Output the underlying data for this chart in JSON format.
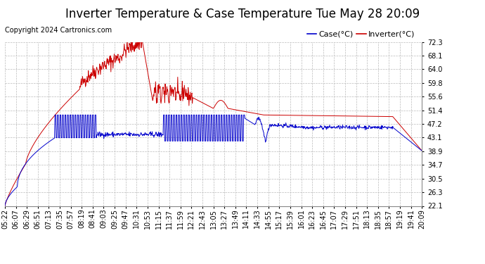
{
  "title": "Inverter Temperature & Case Temperature Tue May 28 20:09",
  "copyright": "Copyright 2024 Cartronics.com",
  "legend_case": "Case(°C)",
  "legend_inverter": "Inverter(°C)",
  "y_ticks": [
    22.1,
    26.3,
    30.5,
    34.7,
    38.9,
    43.1,
    47.2,
    51.4,
    55.6,
    59.8,
    64.0,
    68.1,
    72.3
  ],
  "ylim": [
    22.1,
    72.3
  ],
  "x_labels": [
    "05:22",
    "06:07",
    "06:29",
    "06:51",
    "07:13",
    "07:35",
    "07:57",
    "08:19",
    "08:41",
    "09:03",
    "09:25",
    "09:47",
    "10:31",
    "10:53",
    "11:15",
    "11:37",
    "11:59",
    "12:21",
    "12:43",
    "13:05",
    "13:27",
    "13:49",
    "14:11",
    "14:33",
    "14:55",
    "15:17",
    "15:39",
    "16:01",
    "16:23",
    "16:45",
    "17:07",
    "17:29",
    "17:51",
    "18:13",
    "18:35",
    "18:57",
    "19:19",
    "19:41",
    "20:09"
  ],
  "bg_color": "#ffffff",
  "plot_bg_color": "#ffffff",
  "grid_color": "#bbbbbb",
  "case_color": "#0000cc",
  "inverter_color": "#cc0000",
  "title_fontsize": 12,
  "copyright_fontsize": 7,
  "tick_fontsize": 7,
  "legend_fontsize": 8
}
